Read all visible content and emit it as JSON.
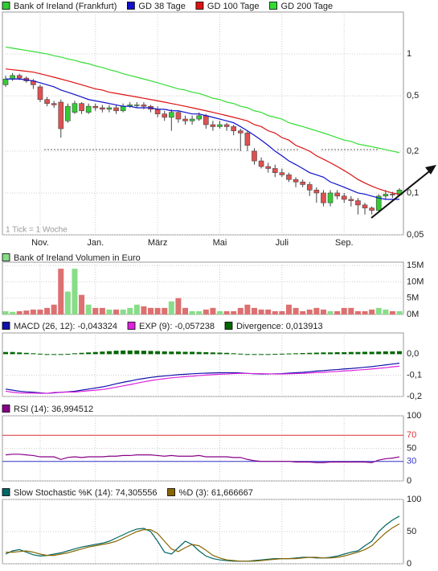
{
  "chart_data": [
    {
      "type": "candlestick",
      "note": "1 Tick = 1 Woche",
      "categories": [
        null,
        null,
        null,
        null,
        null,
        "Nov.",
        null,
        null,
        null,
        null,
        null,
        null,
        null,
        "Jan.",
        null,
        null,
        null,
        null,
        null,
        null,
        null,
        null,
        "März",
        null,
        null,
        null,
        null,
        null,
        null,
        null,
        null,
        "Mai",
        null,
        null,
        null,
        null,
        null,
        null,
        null,
        null,
        "Juli",
        null,
        null,
        null,
        null,
        null,
        null,
        null,
        null,
        "Sep.",
        null,
        null,
        null,
        null,
        null,
        null,
        null,
        null
      ],
      "log_scale": true,
      "grid": true,
      "ylim": [
        0.05,
        2
      ],
      "yticks": [
        1,
        {
          "value": 0.5,
          "label": "0,5"
        },
        {
          "value": 0.2,
          "label": "0,2"
        },
        {
          "value": 0.1,
          "label": "0,1"
        },
        {
          "value": 0.05,
          "label": "0,05"
        }
      ],
      "candles": {
        "name": "Bank of Ireland (Frankfurt)",
        "up_color": "#33cc33",
        "down_color": "#e05050",
        "open": [
          0.6,
          0.66,
          0.7,
          0.67,
          0.64,
          0.58,
          0.47,
          0.44,
          0.45,
          0.33,
          0.38,
          0.44,
          0.38,
          0.42,
          0.41,
          0.4,
          0.41,
          0.39,
          0.42,
          0.43,
          0.43,
          0.42,
          0.4,
          0.37,
          0.35,
          0.38,
          0.34,
          0.33,
          0.34,
          0.36,
          0.31,
          0.3,
          0.31,
          0.3,
          0.28,
          0.27,
          0.2,
          0.17,
          0.155,
          0.15,
          0.14,
          0.135,
          0.125,
          0.12,
          0.115,
          0.105,
          0.1,
          0.085,
          0.1,
          0.095,
          0.09,
          0.088,
          0.082,
          0.078,
          0.075,
          0.095,
          0.098,
          0.097
        ],
        "high": [
          0.7,
          0.73,
          0.72,
          0.69,
          0.66,
          0.6,
          0.49,
          0.46,
          0.47,
          0.44,
          0.46,
          0.45,
          0.44,
          0.44,
          0.43,
          0.43,
          0.43,
          0.44,
          0.45,
          0.45,
          0.45,
          0.43,
          0.42,
          0.39,
          0.4,
          0.39,
          0.36,
          0.36,
          0.38,
          0.37,
          0.33,
          0.33,
          0.32,
          0.31,
          0.29,
          0.28,
          0.21,
          0.18,
          0.165,
          0.16,
          0.15,
          0.14,
          0.13,
          0.125,
          0.12,
          0.11,
          0.105,
          0.105,
          0.105,
          0.1,
          0.095,
          0.092,
          0.085,
          0.08,
          0.098,
          0.105,
          0.102,
          0.108
        ],
        "low": [
          0.58,
          0.64,
          0.65,
          0.62,
          0.56,
          0.45,
          0.42,
          0.41,
          0.25,
          0.32,
          0.37,
          0.37,
          0.37,
          0.39,
          0.38,
          0.38,
          0.37,
          0.38,
          0.41,
          0.41,
          0.4,
          0.38,
          0.35,
          0.33,
          0.28,
          0.32,
          0.31,
          0.31,
          0.33,
          0.29,
          0.28,
          0.29,
          0.28,
          0.26,
          0.2,
          0.2,
          0.16,
          0.15,
          0.14,
          0.13,
          0.13,
          0.12,
          0.11,
          0.11,
          0.095,
          0.085,
          0.08,
          0.08,
          0.09,
          0.085,
          0.08,
          0.07,
          0.07,
          0.07,
          0.072,
          0.09,
          0.092,
          0.095
        ],
        "close": [
          0.66,
          0.7,
          0.67,
          0.64,
          0.6,
          0.47,
          0.44,
          0.43,
          0.29,
          0.42,
          0.44,
          0.39,
          0.42,
          0.41,
          0.4,
          0.41,
          0.39,
          0.42,
          0.43,
          0.43,
          0.42,
          0.4,
          0.37,
          0.35,
          0.38,
          0.34,
          0.33,
          0.34,
          0.36,
          0.31,
          0.3,
          0.31,
          0.3,
          0.28,
          0.27,
          0.22,
          0.17,
          0.155,
          0.15,
          0.14,
          0.135,
          0.125,
          0.12,
          0.115,
          0.105,
          0.1,
          0.085,
          0.1,
          0.095,
          0.09,
          0.088,
          0.082,
          0.078,
          0.075,
          0.095,
          0.098,
          0.097,
          0.105
        ]
      },
      "series": [
        {
          "name": "GD 38 Tage",
          "type": "line",
          "color": "#1010cc",
          "values": [
            0.66,
            0.66,
            0.66,
            0.65,
            0.64,
            0.62,
            0.6,
            0.58,
            0.55,
            0.53,
            0.51,
            0.49,
            0.47,
            0.46,
            0.45,
            0.44,
            0.43,
            0.42,
            0.42,
            0.41,
            0.41,
            0.41,
            0.4,
            0.4,
            0.39,
            0.39,
            0.38,
            0.37,
            0.37,
            0.36,
            0.35,
            0.34,
            0.33,
            0.32,
            0.3,
            0.28,
            0.26,
            0.24,
            0.22,
            0.2,
            0.185,
            0.17,
            0.16,
            0.15,
            0.14,
            0.135,
            0.13,
            0.12,
            0.115,
            0.11,
            0.105,
            0.1,
            0.098,
            0.095,
            0.092,
            0.09,
            0.09,
            0.09
          ]
        },
        {
          "name": "GD 100 Tage",
          "type": "line",
          "color": "#dd1111",
          "values": [
            0.78,
            0.77,
            0.76,
            0.75,
            0.74,
            0.72,
            0.7,
            0.68,
            0.66,
            0.64,
            0.62,
            0.6,
            0.58,
            0.56,
            0.55,
            0.53,
            0.52,
            0.51,
            0.5,
            0.49,
            0.48,
            0.47,
            0.46,
            0.45,
            0.44,
            0.43,
            0.42,
            0.41,
            0.4,
            0.39,
            0.38,
            0.37,
            0.36,
            0.35,
            0.34,
            0.33,
            0.31,
            0.3,
            0.28,
            0.27,
            0.25,
            0.24,
            0.22,
            0.21,
            0.2,
            0.185,
            0.175,
            0.165,
            0.155,
            0.145,
            0.135,
            0.125,
            0.118,
            0.112,
            0.107,
            0.103,
            0.1,
            0.098
          ]
        },
        {
          "name": "GD 200 Tage",
          "type": "line",
          "color": "#33dd33",
          "values": [
            1.12,
            1.1,
            1.08,
            1.06,
            1.04,
            1.02,
            1.0,
            0.97,
            0.95,
            0.92,
            0.9,
            0.87,
            0.85,
            0.82,
            0.8,
            0.77,
            0.75,
            0.72,
            0.7,
            0.68,
            0.66,
            0.64,
            0.62,
            0.6,
            0.58,
            0.56,
            0.55,
            0.53,
            0.52,
            0.5,
            0.48,
            0.47,
            0.45,
            0.44,
            0.42,
            0.41,
            0.39,
            0.38,
            0.36,
            0.35,
            0.34,
            0.32,
            0.31,
            0.3,
            0.29,
            0.28,
            0.27,
            0.26,
            0.25,
            0.24,
            0.235,
            0.225,
            0.22,
            0.215,
            0.21,
            0.205,
            0.2,
            0.195
          ]
        }
      ]
    },
    {
      "type": "volume",
      "grid": true,
      "ylim": [
        0,
        16000000
      ],
      "yticks": [
        {
          "value": 15000000,
          "label": "15M"
        },
        {
          "value": 10000000,
          "label": "10M"
        },
        {
          "value": 5000000,
          "label": "5M"
        },
        {
          "value": 0,
          "label": "0M"
        }
      ],
      "series": [
        {
          "name": "Bank of Ireland Volumen in Euro",
          "type": "bar",
          "up_color": "#88dd88",
          "down_color": "#dd7070",
          "values": [
            1000000,
            800000,
            1000000,
            1200000,
            1500000,
            1500000,
            2000000,
            3000000,
            14000000,
            7000000,
            14000000,
            6000000,
            3000000,
            2000000,
            2000000,
            1500000,
            1500000,
            1500000,
            2000000,
            3000000,
            2500000,
            2000000,
            2000000,
            2000000,
            4000000,
            5000000,
            2000000,
            1000000,
            1000000,
            1500000,
            2000000,
            1000000,
            1000000,
            1000000,
            2000000,
            3000000,
            2000000,
            1500000,
            1500000,
            1000000,
            1000000,
            3000000,
            2000000,
            1000000,
            1500000,
            2000000,
            1500000,
            1000000,
            1000000,
            2000000,
            2000000,
            1000000,
            1000000,
            1500000,
            2000000,
            1500000,
            1000000,
            1000000
          ]
        }
      ]
    },
    {
      "type": "indicator",
      "grid": true,
      "ylim": [
        -0.2,
        0.1
      ],
      "yticks": [
        {
          "value": 0,
          "label": "0,0"
        },
        {
          "value": -0.1,
          "label": "-0,1"
        },
        {
          "value": -0.2,
          "label": "-0,2"
        }
      ],
      "series": [
        {
          "name": "MACD (26, 12): -0,043324",
          "type": "line",
          "color": "#1010aa",
          "values": [
            -0.165,
            -0.17,
            -0.175,
            -0.178,
            -0.18,
            -0.183,
            -0.185,
            -0.183,
            -0.18,
            -0.178,
            -0.175,
            -0.17,
            -0.165,
            -0.16,
            -0.155,
            -0.148,
            -0.14,
            -0.133,
            -0.127,
            -0.12,
            -0.115,
            -0.11,
            -0.106,
            -0.103,
            -0.1,
            -0.097,
            -0.095,
            -0.093,
            -0.091,
            -0.09,
            -0.089,
            -0.088,
            -0.088,
            -0.088,
            -0.089,
            -0.091,
            -0.093,
            -0.094,
            -0.094,
            -0.093,
            -0.092,
            -0.09,
            -0.088,
            -0.086,
            -0.083,
            -0.08,
            -0.078,
            -0.075,
            -0.073,
            -0.07,
            -0.068,
            -0.065,
            -0.062,
            -0.059,
            -0.055,
            -0.051,
            -0.047,
            -0.043
          ]
        },
        {
          "name": "EXP (9): -0,057238",
          "type": "line",
          "color": "#dd22dd",
          "values": [
            -0.175,
            -0.18,
            -0.183,
            -0.184,
            -0.184,
            -0.185,
            -0.185,
            -0.181,
            -0.18,
            -0.179,
            -0.179,
            -0.176,
            -0.173,
            -0.17,
            -0.167,
            -0.162,
            -0.156,
            -0.15,
            -0.144,
            -0.137,
            -0.131,
            -0.125,
            -0.12,
            -0.116,
            -0.112,
            -0.109,
            -0.106,
            -0.104,
            -0.101,
            -0.099,
            -0.097,
            -0.095,
            -0.094,
            -0.092,
            -0.091,
            -0.091,
            -0.092,
            -0.092,
            -0.093,
            -0.094,
            -0.094,
            -0.093,
            -0.092,
            -0.091,
            -0.089,
            -0.087,
            -0.086,
            -0.083,
            -0.082,
            -0.079,
            -0.078,
            -0.075,
            -0.073,
            -0.07,
            -0.067,
            -0.064,
            -0.06,
            -0.057
          ]
        },
        {
          "name": "Divergence: 0,013913",
          "type": "bar",
          "color": "#006600",
          "values": [
            0.01,
            0.01,
            0.008,
            0.006,
            0.004,
            0.002,
            0,
            -0.002,
            0,
            0.001,
            0.004,
            0.006,
            0.008,
            0.01,
            0.012,
            0.014,
            0.016,
            0.017,
            0.017,
            0.017,
            0.016,
            0.015,
            0.014,
            0.013,
            0.012,
            0.012,
            0.011,
            0.011,
            0.01,
            0.009,
            0.008,
            0.007,
            0.006,
            0.004,
            0.002,
            0,
            -0.001,
            -0.002,
            -0.001,
            0.001,
            0.002,
            0.003,
            0.004,
            0.005,
            0.006,
            0.007,
            0.008,
            0.008,
            0.009,
            0.009,
            0.01,
            0.01,
            0.011,
            0.011,
            0.012,
            0.013,
            0.013,
            0.014
          ]
        }
      ]
    },
    {
      "type": "indicator",
      "grid": true,
      "ylim": [
        0,
        100
      ],
      "yticks": [
        100,
        70,
        50,
        30,
        0
      ],
      "reference_lines": [
        {
          "value": 70,
          "color": "#dd3333"
        },
        {
          "value": 30,
          "color": "#3333cc",
          "fill_below": true
        }
      ],
      "series": [
        {
          "name": "RSI (14): 36,994512",
          "type": "line",
          "color": "#880088",
          "values": [
            40,
            41,
            41,
            40,
            39,
            37,
            37,
            37,
            33,
            36,
            37,
            36,
            37,
            37,
            37,
            38,
            38,
            39,
            39,
            40,
            40,
            40,
            39,
            38,
            39,
            38,
            38,
            38,
            39,
            37,
            37,
            37,
            37,
            36,
            36,
            33,
            31,
            30,
            30,
            30,
            30,
            30,
            29,
            29,
            29,
            28,
            28,
            29,
            29,
            29,
            29,
            29,
            29,
            28,
            32,
            34,
            35,
            37
          ]
        }
      ]
    },
    {
      "type": "indicator",
      "grid": true,
      "ylim": [
        0,
        100
      ],
      "yticks": [
        100,
        50,
        0
      ],
      "series": [
        {
          "name": "Slow Stochastic %K (14): 74,305556",
          "type": "line",
          "color": "#006666",
          "values": [
            15,
            20,
            22,
            18,
            14,
            12,
            13,
            15,
            17,
            20,
            23,
            26,
            28,
            30,
            32,
            35,
            40,
            45,
            50,
            54,
            55,
            50,
            35,
            18,
            15,
            25,
            35,
            30,
            20,
            12,
            8,
            6,
            5,
            4,
            4,
            4,
            5,
            6,
            7,
            8,
            8,
            8,
            9,
            10,
            10,
            9,
            9,
            10,
            12,
            15,
            18,
            20,
            28,
            35,
            50,
            60,
            68,
            74
          ]
        },
        {
          "name": "%D (3): 61,666667",
          "type": "line",
          "color": "#886600",
          "values": [
            18,
            18,
            19,
            20,
            18,
            15,
            13,
            13,
            15,
            17,
            20,
            23,
            26,
            28,
            30,
            32,
            35,
            40,
            45,
            50,
            53,
            53,
            47,
            35,
            23,
            19,
            25,
            30,
            28,
            21,
            13,
            9,
            6,
            5,
            4,
            4,
            4,
            5,
            6,
            7,
            8,
            8,
            8,
            9,
            10,
            10,
            9,
            9,
            10,
            12,
            15,
            18,
            22,
            28,
            38,
            48,
            56,
            62
          ]
        }
      ]
    }
  ]
}
